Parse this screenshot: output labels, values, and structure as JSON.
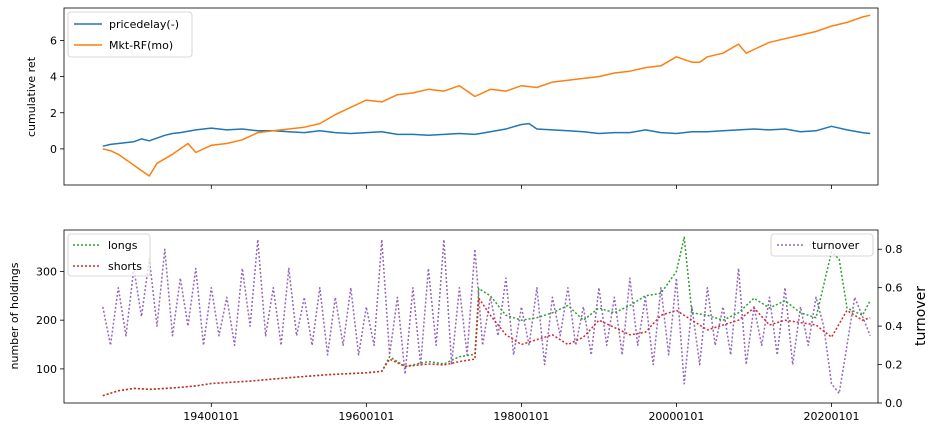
{
  "chart_data": [
    {
      "type": "line",
      "ylabel": "cumulative ret",
      "xlim": [
        1921,
        2026
      ],
      "ylim": [
        -2.0,
        7.8
      ],
      "yticks": [
        0,
        2,
        4,
        6
      ],
      "xticks": [
        1940,
        1960,
        1980,
        2000,
        2020
      ],
      "xticks_labeled": false,
      "legend": "top-left",
      "series": [
        {
          "name": "pricedelay(-)",
          "color": "#1f77b4",
          "x": [
            1926,
            1927,
            1928,
            1929,
            1930,
            1931,
            1932,
            1934,
            1935,
            1936,
            1938,
            1940,
            1942,
            1944,
            1946,
            1948,
            1950,
            1952,
            1954,
            1956,
            1958,
            1960,
            1962,
            1964,
            1966,
            1968,
            1970,
            1972,
            1974,
            1976,
            1978,
            1980,
            1981,
            1982,
            1984,
            1986,
            1988,
            1990,
            1992,
            1994,
            1996,
            1998,
            2000,
            2002,
            2004,
            2006,
            2008,
            2010,
            2012,
            2014,
            2016,
            2018,
            2020,
            2022,
            2024,
            2025
          ],
          "y": [
            0.15,
            0.25,
            0.3,
            0.35,
            0.4,
            0.55,
            0.45,
            0.75,
            0.85,
            0.9,
            1.05,
            1.15,
            1.05,
            1.1,
            1.0,
            1.0,
            0.95,
            0.9,
            1.0,
            0.9,
            0.85,
            0.9,
            0.95,
            0.8,
            0.8,
            0.75,
            0.8,
            0.85,
            0.8,
            0.95,
            1.1,
            1.35,
            1.4,
            1.1,
            1.05,
            1.0,
            0.95,
            0.85,
            0.9,
            0.9,
            1.05,
            0.9,
            0.85,
            0.95,
            0.95,
            1.0,
            1.05,
            1.1,
            1.05,
            1.1,
            0.95,
            1.0,
            1.25,
            1.05,
            0.9,
            0.85
          ]
        },
        {
          "name": "Mkt-RF(mo)",
          "color": "#ff7f0e",
          "x": [
            1926,
            1927,
            1928,
            1929,
            1930,
            1931,
            1932,
            1933,
            1935,
            1937,
            1938,
            1940,
            1942,
            1944,
            1946,
            1948,
            1950,
            1952,
            1954,
            1956,
            1958,
            1960,
            1962,
            1964,
            1966,
            1968,
            1970,
            1972,
            1974,
            1975,
            1976,
            1978,
            1980,
            1982,
            1984,
            1986,
            1988,
            1990,
            1992,
            1994,
            1996,
            1998,
            2000,
            2002,
            2003,
            2004,
            2006,
            2008,
            2009,
            2010,
            2012,
            2014,
            2016,
            2018,
            2020,
            2022,
            2024,
            2025
          ],
          "y": [
            0.0,
            -0.1,
            -0.3,
            -0.6,
            -0.9,
            -1.2,
            -1.5,
            -0.8,
            -0.3,
            0.3,
            -0.2,
            0.2,
            0.3,
            0.5,
            0.9,
            1.0,
            1.1,
            1.2,
            1.4,
            1.9,
            2.3,
            2.7,
            2.6,
            3.0,
            3.1,
            3.3,
            3.2,
            3.5,
            2.9,
            3.1,
            3.3,
            3.2,
            3.5,
            3.4,
            3.7,
            3.8,
            3.9,
            4.0,
            4.2,
            4.3,
            4.5,
            4.6,
            5.1,
            4.8,
            4.8,
            5.1,
            5.3,
            5.8,
            5.3,
            5.5,
            5.9,
            6.1,
            6.3,
            6.5,
            6.8,
            7.0,
            7.3,
            7.4
          ]
        }
      ]
    },
    {
      "type": "line",
      "ylabel": "number of holdings",
      "y2label": "turnover",
      "xlim": [
        1921,
        2026
      ],
      "ylim": [
        30,
        385
      ],
      "y2lim": [
        0.0,
        0.9
      ],
      "yticks": [
        100,
        200,
        300
      ],
      "y2ticks": [
        0.0,
        0.2,
        0.4,
        0.6,
        0.8
      ],
      "xticks": [
        1940,
        1960,
        1980,
        2000,
        2020
      ],
      "xticklabels": [
        "19400101",
        "19600101",
        "19800101",
        "20000101",
        "20200101"
      ],
      "legend": "top-left and top-right",
      "series": [
        {
          "name": "longs",
          "color": "#2ca02c",
          "style": "dotted",
          "x": [
            1926,
            1928,
            1930,
            1932,
            1934,
            1936,
            1938,
            1940,
            1945,
            1950,
            1955,
            1960,
            1962,
            1963,
            1965,
            1968,
            1970,
            1972,
            1974,
            1974.5,
            1976,
            1978,
            1980,
            1982,
            1984,
            1986,
            1988,
            1990,
            1992,
            1994,
            1996,
            1998,
            2000,
            2001,
            2002,
            2004,
            2006,
            2008,
            2010,
            2012,
            2014,
            2016,
            2018,
            2020,
            2021,
            2022,
            2024,
            2025
          ],
          "y": [
            45,
            55,
            60,
            58,
            60,
            62,
            65,
            70,
            75,
            82,
            88,
            92,
            95,
            125,
            105,
            115,
            110,
            125,
            130,
            265,
            250,
            210,
            200,
            205,
            215,
            230,
            200,
            225,
            215,
            230,
            250,
            255,
            300,
            370,
            215,
            210,
            200,
            215,
            245,
            225,
            240,
            215,
            205,
            340,
            325,
            225,
            210,
            240
          ]
        },
        {
          "name": "shorts",
          "color": "#d62728",
          "style": "dotted",
          "x": [
            1926,
            1928,
            1930,
            1932,
            1934,
            1936,
            1938,
            1940,
            1945,
            1950,
            1955,
            1960,
            1962,
            1963,
            1965,
            1968,
            1970,
            1972,
            1974,
            1974.5,
            1976,
            1978,
            1980,
            1982,
            1984,
            1986,
            1988,
            1990,
            1992,
            1994,
            1996,
            1998,
            2000,
            2002,
            2004,
            2006,
            2008,
            2010,
            2012,
            2014,
            2016,
            2018,
            2020,
            2022,
            2024,
            2025
          ],
          "y": [
            45,
            55,
            60,
            58,
            60,
            62,
            65,
            70,
            75,
            82,
            88,
            92,
            95,
            120,
            105,
            110,
            108,
            115,
            120,
            245,
            210,
            170,
            150,
            160,
            170,
            150,
            165,
            200,
            185,
            170,
            175,
            210,
            220,
            200,
            180,
            190,
            200,
            225,
            190,
            200,
            195,
            190,
            165,
            220,
            200,
            205
          ]
        },
        {
          "name": "turnover",
          "color": "#9467bd",
          "style": "dotted",
          "axis": "right",
          "x": [
            1926,
            1927,
            1928,
            1929,
            1930,
            1931,
            1932,
            1933,
            1934,
            1935,
            1936,
            1937,
            1938,
            1939,
            1940,
            1941,
            1942,
            1943,
            1944,
            1945,
            1946,
            1947,
            1948,
            1949,
            1950,
            1951,
            1952,
            1953,
            1954,
            1955,
            1956,
            1957,
            1958,
            1959,
            1960,
            1961,
            1962,
            1963,
            1964,
            1965,
            1966,
            1967,
            1968,
            1969,
            1970,
            1971,
            1972,
            1973,
            1974,
            1975,
            1976,
            1977,
            1978,
            1979,
            1980,
            1981,
            1982,
            1983,
            1984,
            1985,
            1986,
            1987,
            1988,
            1989,
            1990,
            1991,
            1992,
            1993,
            1994,
            1995,
            1996,
            1997,
            1998,
            1999,
            2000,
            2001,
            2002,
            2003,
            2004,
            2005,
            2006,
            2007,
            2008,
            2009,
            2010,
            2011,
            2012,
            2013,
            2014,
            2015,
            2016,
            2017,
            2018,
            2019,
            2020,
            2021,
            2022,
            2023,
            2024,
            2025
          ],
          "y": [
            0.5,
            0.3,
            0.6,
            0.35,
            0.7,
            0.45,
            0.75,
            0.4,
            0.8,
            0.35,
            0.65,
            0.4,
            0.7,
            0.3,
            0.6,
            0.35,
            0.55,
            0.3,
            0.7,
            0.4,
            0.85,
            0.35,
            0.6,
            0.3,
            0.7,
            0.35,
            0.55,
            0.3,
            0.6,
            0.25,
            0.55,
            0.3,
            0.6,
            0.25,
            0.5,
            0.3,
            0.85,
            0.25,
            0.55,
            0.15,
            0.6,
            0.2,
            0.7,
            0.3,
            0.85,
            0.2,
            0.6,
            0.25,
            0.8,
            0.3,
            0.55,
            0.35,
            0.65,
            0.25,
            0.5,
            0.3,
            0.6,
            0.2,
            0.55,
            0.35,
            0.6,
            0.3,
            0.5,
            0.25,
            0.6,
            0.3,
            0.55,
            0.25,
            0.65,
            0.3,
            0.55,
            0.2,
            0.6,
            0.25,
            0.65,
            0.1,
            0.5,
            0.2,
            0.6,
            0.3,
            0.5,
            0.25,
            0.7,
            0.2,
            0.5,
            0.3,
            0.55,
            0.25,
            0.6,
            0.2,
            0.5,
            0.3,
            0.55,
            0.4,
            0.1,
            0.05,
            0.3,
            0.55,
            0.45,
            0.35
          ]
        }
      ]
    }
  ]
}
